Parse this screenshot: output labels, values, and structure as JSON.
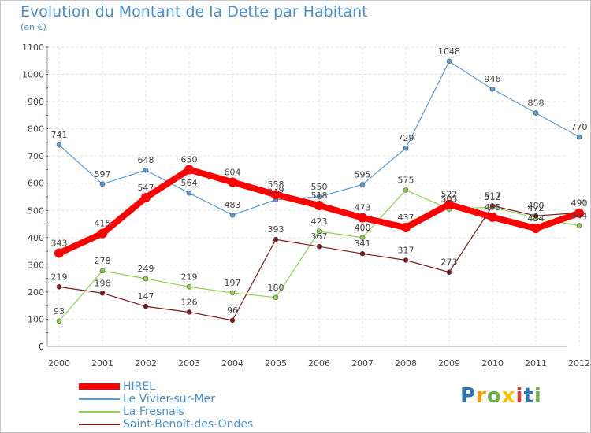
{
  "chart_data": {
    "type": "line",
    "title": "Evolution du Montant de la Dette par Habitant",
    "subtitle": "(en €)",
    "xlabel": "",
    "ylabel": "",
    "ylim": [
      0,
      1100
    ],
    "yticks": [
      0,
      100,
      200,
      300,
      400,
      500,
      600,
      700,
      800,
      900,
      1000,
      1100
    ],
    "categories": [
      "2000",
      "2001",
      "2002",
      "2003",
      "2004",
      "2005",
      "2006",
      "2007",
      "2008",
      "2009",
      "2010",
      "2011",
      "2012"
    ],
    "grid": true,
    "legend_position": "bottom-left",
    "series": [
      {
        "name": "HIREL",
        "color": "#ff0000",
        "values": [
          343,
          415,
          547,
          650,
          604,
          558,
          518,
          473,
          437,
          522,
          475,
          434,
          490
        ]
      },
      {
        "name": "Le Vivier-sur-Mer",
        "color": "#5b9bd5",
        "values": [
          741,
          597,
          648,
          564,
          483,
          539,
          550,
          595,
          729,
          1048,
          946,
          858,
          770
        ]
      },
      {
        "name": "La Fresnais",
        "color": "#92d050",
        "values": [
          93,
          278,
          249,
          219,
          197,
          180,
          423,
          400,
          575,
          505,
          512,
          472,
          444
        ]
      },
      {
        "name": "Saint-Benoît-des-Ondes",
        "color": "#7b1a1a",
        "values": [
          219,
          196,
          147,
          126,
          96,
          393,
          367,
          341,
          317,
          273,
          517,
          480,
          491
        ]
      }
    ]
  },
  "brand": {
    "letters": [
      "P",
      "r",
      "o",
      "x",
      "i",
      "t",
      "i"
    ],
    "colors": [
      "#2e75b6",
      "#ff9900",
      "#70ad47",
      "#ffc000",
      "#e03c31",
      "#2e75b6",
      "#70ad47"
    ]
  }
}
